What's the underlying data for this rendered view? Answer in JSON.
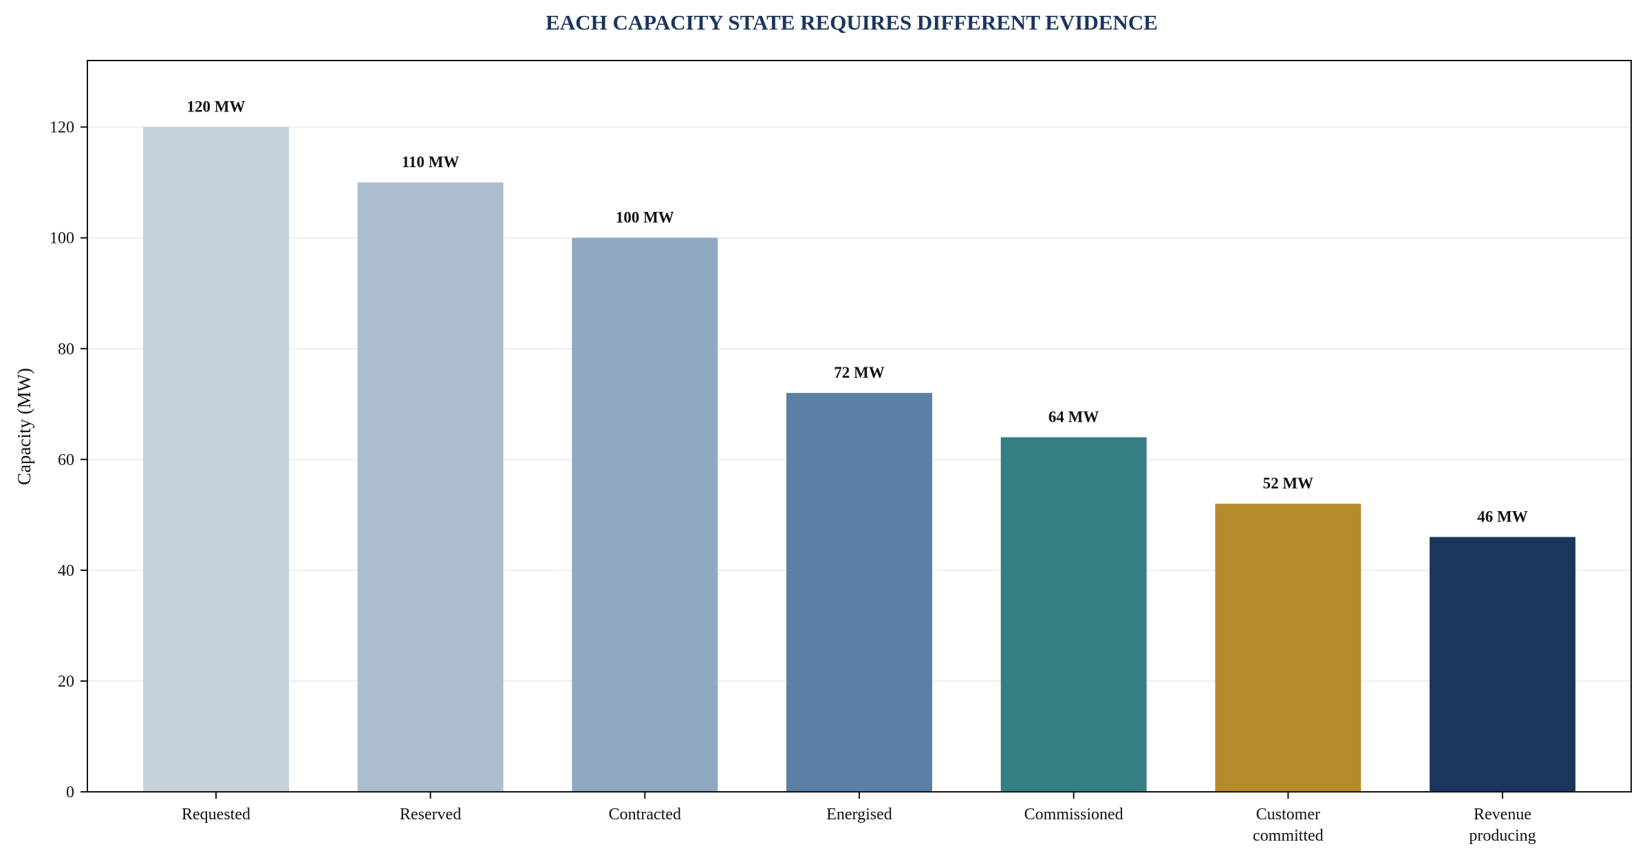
{
  "chart_data": {
    "type": "bar",
    "title": "EACH CAPACITY STATE REQUIRES DIFFERENT EVIDENCE",
    "xlabel": "",
    "ylabel": "Capacity (MW)",
    "ylim": [
      0,
      132
    ],
    "yticks": [
      0,
      20,
      40,
      60,
      80,
      100,
      120
    ],
    "grid": "horizontal, light",
    "legend": "none",
    "categories": [
      [
        "Requested"
      ],
      [
        "Reserved"
      ],
      [
        "Contracted"
      ],
      [
        "Energised"
      ],
      [
        "Commissioned"
      ],
      [
        "Customer",
        "committed"
      ],
      [
        "Revenue",
        "producing"
      ]
    ],
    "values": [
      120,
      110,
      100,
      72,
      64,
      52,
      46
    ],
    "data_labels": [
      "120 MW",
      "110 MW",
      "100 MW",
      "72 MW",
      "64 MW",
      "52 MW",
      "46 MW"
    ],
    "colors": [
      "#c5d1dd",
      "#acbdcf",
      "#8ea9c1",
      "#5c80a5",
      "#347f83",
      "#b58a2a",
      "#1b365d"
    ],
    "title_color": "#1b365d"
  }
}
